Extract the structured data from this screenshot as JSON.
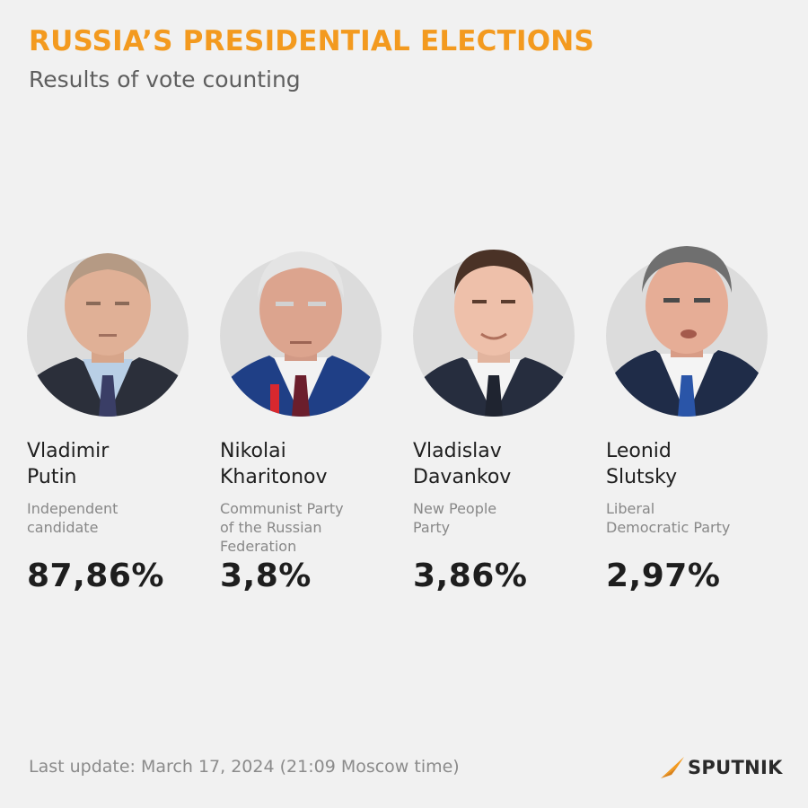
{
  "header": {
    "title": "RUSSIA’S PRESIDENTIAL ELECTIONS",
    "subtitle": "Results of vote counting"
  },
  "candidates": [
    {
      "first_name": "Vladimir",
      "last_name": "Putin",
      "party_lines": [
        "Independent",
        "candidate"
      ],
      "percent": "87,86%"
    },
    {
      "first_name": "Nikolai",
      "last_name": "Kharitonov",
      "party_lines": [
        "Communist Party",
        "of the Russian",
        "Federation"
      ],
      "percent": "3,8%"
    },
    {
      "first_name": "Vladislav",
      "last_name": "Davankov",
      "party_lines": [
        "New People",
        "Party"
      ],
      "percent": "3,86%"
    },
    {
      "first_name": "Leonid",
      "last_name": "Slutsky",
      "party_lines": [
        "Liberal",
        "Democratic Party"
      ],
      "percent": "2,97%"
    }
  ],
  "footer": {
    "last_update": "Last update: March 17, 2024 (21:09 Moscow time)",
    "brand": "SPUTNIK"
  },
  "colors": {
    "accent": "#f39a1f",
    "background": "#f1f1f1",
    "text": "#1e1e1e",
    "muted": "#888888"
  }
}
